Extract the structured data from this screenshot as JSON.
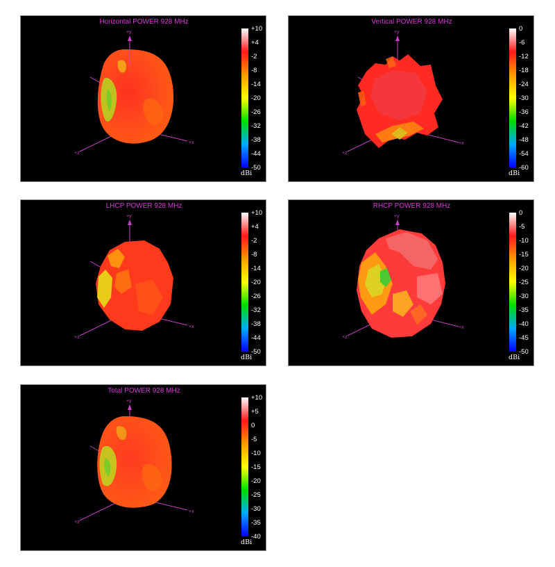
{
  "panels": [
    {
      "title": "Horizontal POWER 928  MHz",
      "scale_ticks": [
        "+10",
        "+4",
        "-2",
        "-8",
        "-14",
        "-20",
        "-26",
        "-32",
        "-38",
        "-44",
        "-50"
      ],
      "unit": "dBi",
      "axis_labels": {
        "y": "+y",
        "x": "+x",
        "z": "+z"
      }
    },
    {
      "title": "Vertical POWER 928  MHz",
      "scale_ticks": [
        "0",
        "-6",
        "-12",
        "-18",
        "-24",
        "-30",
        "-36",
        "-42",
        "-48",
        "-54",
        "-60"
      ],
      "unit": "dBi",
      "axis_labels": {
        "y": "+y",
        "x": "+x",
        "z": "+z"
      }
    },
    {
      "title": "LHCP POWER 928  MHz",
      "scale_ticks": [
        "+10",
        "+4",
        "-2",
        "-8",
        "-14",
        "-20",
        "-26",
        "-32",
        "-38",
        "-44",
        "-50"
      ],
      "unit": "dBi",
      "axis_labels": {
        "y": "+y",
        "x": "+x",
        "z": "+z"
      }
    },
    {
      "title": "RHCP POWER 928  MHz",
      "scale_ticks": [
        "0",
        "-5",
        "-10",
        "-15",
        "-20",
        "-25",
        "-30",
        "-35",
        "-40",
        "-45",
        "-50"
      ],
      "unit": "dBi",
      "axis_labels": {
        "y": "+y",
        "x": "+x",
        "z": "+z"
      }
    },
    {
      "title": "Total POWER 928  MHz",
      "scale_ticks": [
        "+10",
        "+5",
        "0",
        "-5",
        "-10",
        "-15",
        "-20",
        "-25",
        "-30",
        "-35",
        "-40"
      ],
      "unit": "dBi",
      "axis_labels": {
        "y": "+y",
        "x": "+x",
        "z": "+z"
      }
    }
  ],
  "colors": {
    "axis": "#c640c6",
    "title": "#d43ad4",
    "colormap": [
      "#ffffff",
      "#ff1a1a",
      "#ff9900",
      "#ffff00",
      "#00dd00",
      "#00aaff",
      "#0000ff"
    ]
  }
}
